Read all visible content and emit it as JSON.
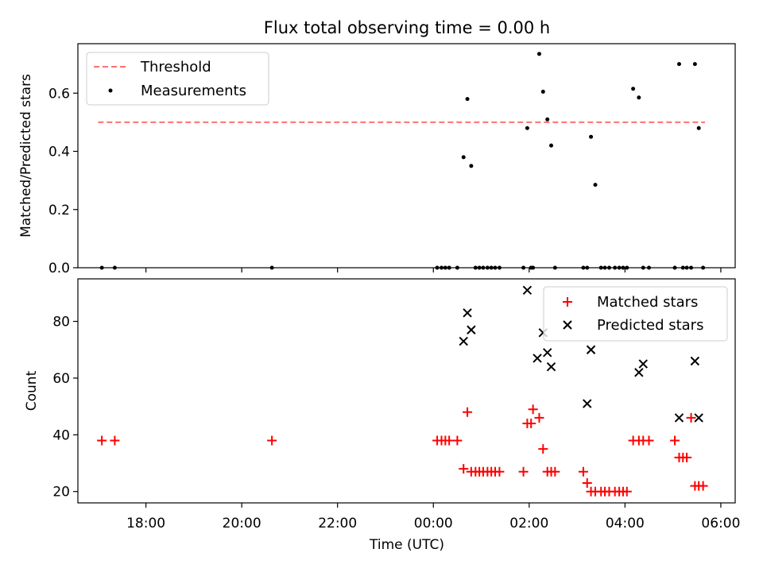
{
  "figure": {
    "title": "Flux total observing time = 0.00 h"
  },
  "chart_data": [
    {
      "type": "scatter",
      "ylabel": "Matched/Predicted stars",
      "xlim": [
        16.58,
        30.3
      ],
      "ylim": [
        0.0,
        0.77
      ],
      "yticks": [
        0.0,
        0.2,
        0.4,
        0.6
      ],
      "ytick_labels": [
        "0.0",
        "0.2",
        "0.4",
        "0.6"
      ],
      "legend": {
        "position": "top-left",
        "entries": [
          "Threshold",
          "Measurements"
        ]
      },
      "colors": {
        "threshold": "#ff7070",
        "measurements": "#000000"
      },
      "threshold": {
        "name": "Threshold",
        "y": 0.5,
        "x": [
          17.0,
          29.67
        ]
      },
      "series": [
        {
          "name": "Measurements",
          "x": [
            17.08,
            17.35,
            20.63,
            24.08,
            24.17,
            24.25,
            24.33,
            24.5,
            24.63,
            24.71,
            24.79,
            24.88,
            24.96,
            25.04,
            25.13,
            25.21,
            25.29,
            25.38,
            25.88,
            25.96,
            26.04,
            26.08,
            26.21,
            26.29,
            26.38,
            26.46,
            26.54,
            27.13,
            27.21,
            27.29,
            27.38,
            27.5,
            27.58,
            27.67,
            27.79,
            27.88,
            27.96,
            28.04,
            28.17,
            28.29,
            28.38,
            28.5,
            29.04,
            29.13,
            29.21,
            29.29,
            29.38,
            29.46,
            29.54,
            29.63
          ],
          "y": [
            0.0,
            0.0,
            0.0,
            0.0,
            0.0,
            0.0,
            0.0,
            0.0,
            0.38,
            0.58,
            0.35,
            0.0,
            0.0,
            0.0,
            0.0,
            0.0,
            0.0,
            0.0,
            0.0,
            0.48,
            0.0,
            0.0,
            0.735,
            0.605,
            0.51,
            0.42,
            0.0,
            0.0,
            0.0,
            0.45,
            0.285,
            0.0,
            0.0,
            0.0,
            0.0,
            0.0,
            0.0,
            0.0,
            0.615,
            0.585,
            0.0,
            0.0,
            0.0,
            0.7,
            0.0,
            0.0,
            0.0,
            0.7,
            0.48,
            0.0
          ]
        }
      ]
    },
    {
      "type": "scatter",
      "xlabel": "Time (UTC)",
      "ylabel": "Count",
      "xlim": [
        16.58,
        30.3
      ],
      "ylim": [
        16.0,
        95.0
      ],
      "yticks": [
        20,
        40,
        60,
        80
      ],
      "ytick_labels": [
        "20",
        "40",
        "60",
        "80"
      ],
      "xticks": [
        18,
        20,
        22,
        24,
        26,
        28,
        30
      ],
      "xtick_labels": [
        "18:00",
        "20:00",
        "22:00",
        "00:00",
        "02:00",
        "04:00",
        "06:00"
      ],
      "legend": {
        "position": "top-right",
        "entries": [
          "Matched stars",
          "Predicted stars"
        ]
      },
      "colors": {
        "matched": "#ff0000",
        "predicted": "#000000"
      },
      "series": [
        {
          "name": "Matched stars",
          "marker": "+",
          "x": [
            17.08,
            17.35,
            20.63,
            24.08,
            24.17,
            24.25,
            24.33,
            24.5,
            24.63,
            24.71,
            24.79,
            24.88,
            24.96,
            25.04,
            25.13,
            25.21,
            25.29,
            25.38,
            25.88,
            25.96,
            26.04,
            26.08,
            26.21,
            26.29,
            26.38,
            26.46,
            26.54,
            27.13,
            27.21,
            27.29,
            27.38,
            27.5,
            27.58,
            27.67,
            27.79,
            27.88,
            27.96,
            28.04,
            28.17,
            28.29,
            28.38,
            28.5,
            29.04,
            29.13,
            29.21,
            29.29,
            29.38,
            29.46,
            29.54,
            29.63
          ],
          "y": [
            38,
            38,
            38,
            38,
            38,
            38,
            38,
            38,
            28,
            48,
            27,
            27,
            27,
            27,
            27,
            27,
            27,
            27,
            27,
            44,
            44,
            49,
            46,
            35,
            27,
            27,
            27,
            27,
            23,
            20,
            20,
            20,
            20,
            20,
            20,
            20,
            20,
            20,
            38,
            38,
            38,
            38,
            38,
            32,
            32,
            32,
            46,
            22,
            22,
            22
          ]
        },
        {
          "name": "Predicted stars",
          "marker": "x",
          "x": [
            24.63,
            24.71,
            24.79,
            25.96,
            26.17,
            26.29,
            26.38,
            26.46,
            27.21,
            27.29,
            28.29,
            28.38,
            29.13,
            29.46,
            29.54
          ],
          "y": [
            73,
            83,
            77,
            91,
            67,
            76,
            69,
            64,
            51,
            70,
            62,
            65,
            46,
            66,
            46
          ]
        }
      ]
    }
  ]
}
